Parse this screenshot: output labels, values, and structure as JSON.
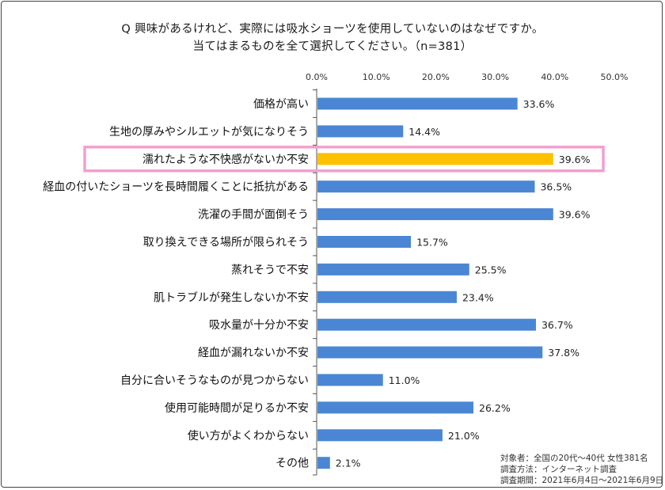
{
  "title": {
    "line1": "Q 興味があるけれど、実際には吸水ショーツを使用していないのはなぜですか。",
    "line2": "当てはまるものを全て選択してください。（n=381）"
  },
  "chart_data": {
    "type": "bar",
    "orientation": "horizontal",
    "x_ticks": [
      "0.0%",
      "10.0%",
      "20.0%",
      "30.0%",
      "40.0%",
      "50.0%"
    ],
    "xlim": [
      0,
      50
    ],
    "categories": [
      "価格が高い",
      "生地の厚みやシルエットが気になりそう",
      "濡れたような不快感がないか不安",
      "経血の付いたショーツを長時間履くことに抵抗がある",
      "洗濯の手間が面倒そう",
      "取り換えできる場所が限られそう",
      "蒸れそうで不安",
      "肌トラブルが発生しないか不安",
      "吸水量が十分か不安",
      "経血が漏れないか不安",
      "自分に合いそうなものが見つからない",
      "使用可能時間が足りるか不安",
      "使い方がよくわからない",
      "その他"
    ],
    "values": [
      33.6,
      14.4,
      39.6,
      36.5,
      39.6,
      15.7,
      25.5,
      23.4,
      36.7,
      37.8,
      11.0,
      26.2,
      21.0,
      2.1
    ],
    "value_labels": [
      "33.6%",
      "14.4%",
      "39.6%",
      "36.5%",
      "39.6%",
      "15.7%",
      "25.5%",
      "23.4%",
      "36.7%",
      "37.8%",
      "11.0%",
      "26.2%",
      "21.0%",
      "2.1%"
    ],
    "highlight_index": 2,
    "bar_color": "#4a86d4",
    "highlight_color": "#ffc000",
    "highlight_border_color": "#f29fcf",
    "grid": false
  },
  "notes": [
    "対象者：全国の20代～40代 女性381名",
    "調査方法：インターネット調査",
    "調査期間：2021年6月4日～2021年6月9日"
  ]
}
